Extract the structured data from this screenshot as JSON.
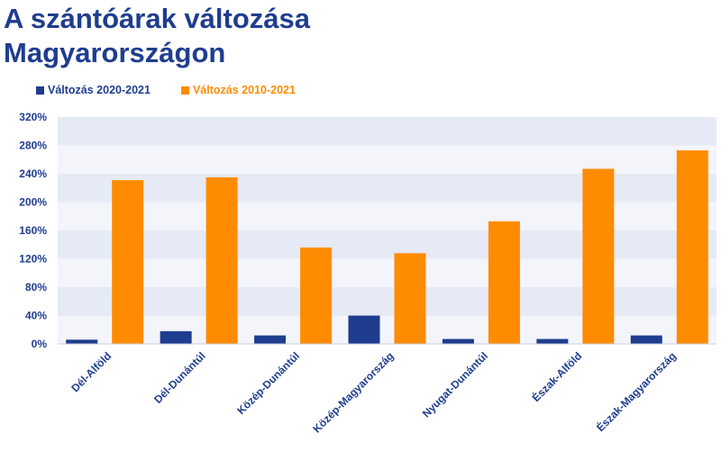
{
  "chart_data": {
    "type": "bar",
    "title": "A szántóárak változása Magyarországon",
    "categories": [
      "Dél-Alföld",
      "Dél-Dunántúl",
      "Közép-Dunántúl",
      "Közép-Magyarország",
      "Nyugat-Dunántúl",
      "Észak-Alföld",
      "Észak-Magyarország"
    ],
    "series": [
      {
        "name": "Változás 2020-2021",
        "color": "#1f3d8f",
        "values": [
          6,
          18,
          12,
          40,
          7,
          7,
          12
        ]
      },
      {
        "name": "Változás 2010-2021",
        "color": "#ff8c00",
        "values": [
          231,
          235,
          136,
          128,
          173,
          247,
          273
        ]
      }
    ],
    "ylim": [
      0,
      320
    ],
    "yticks": [
      "0%",
      "40%",
      "80%",
      "120%",
      "160%",
      "200%",
      "240%",
      "280%",
      "320%"
    ],
    "xlabel": "",
    "ylabel": "",
    "legend_position": "top-left",
    "grid": true,
    "band_colors": [
      "#e6eaf5",
      "#f3f5fb"
    ]
  }
}
